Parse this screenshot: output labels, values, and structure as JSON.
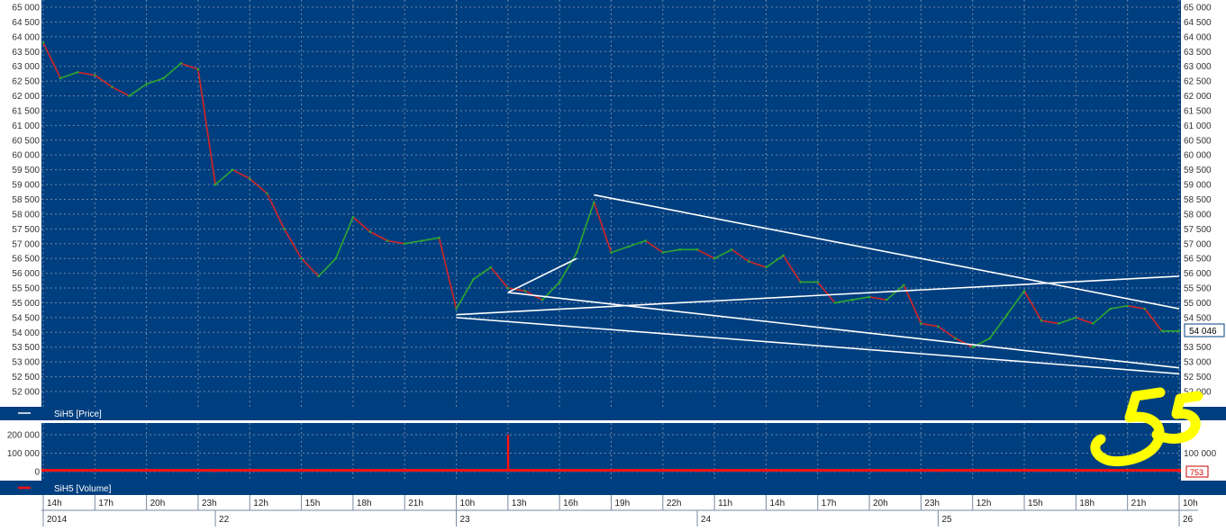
{
  "app": {
    "price_panel_legend": "SiH5 [Price]",
    "volume_panel_legend": "SiH5 [Volume]",
    "last_price_badge": "54 046",
    "last_volume_badge": "753",
    "annotation_text": "55"
  },
  "colors": {
    "background": "#003f7f",
    "grid": "#6f86a8",
    "candle_up": "#2fa82f",
    "candle_down": "#d72424",
    "trendline": "#ffffff",
    "volume": "#ff1010",
    "annotation": "#ffff00",
    "axis_panel": "#ffffff"
  },
  "chart_data": [
    {
      "type": "line",
      "title": "SiH5 [Price]",
      "series": [
        {
          "name": "SiH5 [Price]",
          "x": [
            "2014-12-19 14:00",
            "2014-12-19 15:00",
            "2014-12-19 16:00",
            "2014-12-19 17:00",
            "2014-12-19 18:00",
            "2014-12-19 19:00",
            "2014-12-19 20:00",
            "2014-12-19 21:00",
            "2014-12-19 22:00",
            "2014-12-19 23:00",
            "2014-12-22 10:00",
            "2014-12-22 11:00",
            "2014-12-22 12:00",
            "2014-12-22 13:00",
            "2014-12-22 14:00",
            "2014-12-22 15:00",
            "2014-12-22 16:00",
            "2014-12-22 17:00",
            "2014-12-22 18:00",
            "2014-12-22 19:00",
            "2014-12-22 20:00",
            "2014-12-22 21:00",
            "2014-12-22 22:00",
            "2014-12-22 23:00",
            "2014-12-23 10:00",
            "2014-12-23 11:00",
            "2014-12-23 12:00",
            "2014-12-23 13:00",
            "2014-12-23 14:00",
            "2014-12-23 15:00",
            "2014-12-23 16:00",
            "2014-12-23 17:00",
            "2014-12-23 18:00",
            "2014-12-23 19:00",
            "2014-12-23 20:00",
            "2014-12-23 21:00",
            "2014-12-23 22:00",
            "2014-12-23 23:00",
            "2014-12-24 10:00",
            "2014-12-24 11:00",
            "2014-12-24 12:00",
            "2014-12-24 13:00",
            "2014-12-24 14:00",
            "2014-12-24 15:00",
            "2014-12-24 16:00",
            "2014-12-24 17:00",
            "2014-12-24 18:00",
            "2014-12-24 19:00",
            "2014-12-24 20:00",
            "2014-12-24 21:00",
            "2014-12-24 22:00",
            "2014-12-24 23:00",
            "2014-12-25 10:00",
            "2014-12-25 11:00",
            "2014-12-25 12:00",
            "2014-12-25 13:00",
            "2014-12-25 14:00",
            "2014-12-25 15:00",
            "2014-12-25 16:00",
            "2014-12-25 17:00",
            "2014-12-25 18:00",
            "2014-12-25 19:00",
            "2014-12-25 20:00",
            "2014-12-25 21:00",
            "2014-12-25 22:00",
            "2014-12-25 23:00",
            "2014-12-26 10:00"
          ],
          "values": [
            63800,
            62600,
            62800,
            62700,
            62300,
            62000,
            62400,
            62600,
            63100,
            62900,
            59000,
            59500,
            59200,
            58700,
            57500,
            56500,
            55900,
            56500,
            57900,
            57400,
            57100,
            57000,
            57100,
            57200,
            54800,
            55800,
            56200,
            55500,
            55400,
            55100,
            55700,
            56700,
            58400,
            56700,
            56900,
            57100,
            56700,
            56800,
            56800,
            56500,
            56800,
            56400,
            56200,
            56600,
            55700,
            55700,
            55000,
            55100,
            55200,
            55100,
            55600,
            54300,
            54200,
            53800,
            53500,
            53800,
            54600,
            55400,
            54400,
            54300,
            54500,
            54300,
            54800,
            54900,
            54800,
            54046,
            54046
          ]
        }
      ],
      "y_ticks": [
        "52 000",
        "52 500",
        "53 000",
        "53 500",
        "54 000",
        "54 500",
        "55 000",
        "55 500",
        "56 000",
        "56 500",
        "57 000",
        "57 500",
        "58 000",
        "58 500",
        "59 000",
        "59 500",
        "60 000",
        "60 500",
        "61 000",
        "61 500",
        "62 000",
        "62 500",
        "63 000",
        "63 500",
        "64 000",
        "64 500",
        "65 000"
      ],
      "right_y_ticks": [
        "52 000",
        "52 500",
        "53 000",
        "53 500",
        "54 500",
        "55 000",
        "55 500",
        "56 000",
        "56 500",
        "57 000",
        "57 500",
        "58 000",
        "58 500",
        "59 000",
        "59 500",
        "60 000",
        "60 500",
        "61 000",
        "61 500",
        "62 000",
        "62 500",
        "63 000",
        "63 500",
        "64 000",
        "64 500",
        "65 000"
      ],
      "ylim": [
        51900,
        65100
      ],
      "last_value": 54046,
      "trendlines": [
        {
          "from": {
            "x": "2014-12-23 18:00",
            "y": 58650
          },
          "to": {
            "x": "2014-12-26 10:00",
            "y": 54800
          }
        },
        {
          "from": {
            "x": "2014-12-23 10:00",
            "y": 54500
          },
          "to": {
            "x": "2014-12-26 10:00",
            "y": 52600
          }
        },
        {
          "from": {
            "x": "2014-12-23 13:00",
            "y": 55350
          },
          "to": {
            "x": "2014-12-26 10:00",
            "y": 52800
          }
        },
        {
          "from": {
            "x": "2014-12-23 10:00",
            "y": 54600
          },
          "to": {
            "x": "2014-12-26 10:00",
            "y": 55900
          }
        },
        {
          "from": {
            "x": "2014-12-23 13:00",
            "y": 55350
          },
          "to": {
            "x": "2014-12-23 17:00",
            "y": 56500
          }
        }
      ],
      "grid": true,
      "legend": "bottom-left"
    },
    {
      "type": "bar",
      "title": "SiH5 [Volume]",
      "series": [
        {
          "name": "SiH5 [Volume]",
          "x": [
            "2014-12-19 14:00",
            "2014-12-22 10:00",
            "2014-12-22 15:00",
            "2014-12-22 16:00",
            "2014-12-23 10:00",
            "2014-12-23 13:00",
            "2014-12-23 18:00",
            "2014-12-24 10:00",
            "2014-12-24 17:00",
            "2014-12-25 10:00",
            "2014-12-25 15:00",
            "2014-12-26 10:00"
          ],
          "values": [
            4000,
            2500,
            8000,
            14000,
            6000,
            200000,
            9000,
            3000,
            5000,
            2500,
            3000,
            753
          ]
        }
      ],
      "y_ticks": [
        "0",
        "100 000",
        "200 000"
      ],
      "right_y_ticks": [
        "100 000"
      ],
      "ylim": [
        0,
        220000
      ],
      "last_value": 753,
      "grid": true,
      "legend": "bottom-left"
    }
  ],
  "time_axis": {
    "hour_labels": [
      "14h",
      "17h",
      "20h",
      "23h",
      "12h",
      "15h",
      "18h",
      "21h",
      "10h",
      "13h",
      "16h",
      "19h",
      "22h",
      "11h",
      "14h",
      "17h",
      "20h",
      "23h",
      "12h",
      "15h",
      "18h",
      "21h",
      "10h"
    ],
    "date_labels": [
      "2014",
      "22",
      "23",
      "24",
      "25",
      "26"
    ]
  }
}
